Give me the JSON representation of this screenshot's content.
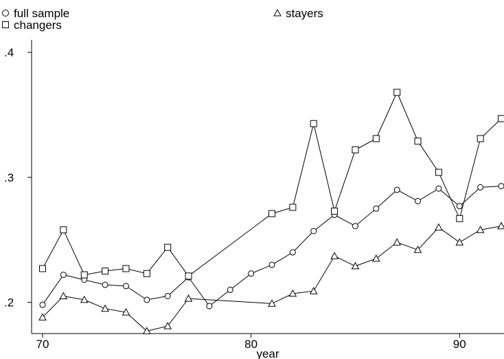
{
  "chart_data": {
    "type": "line",
    "xlabel": "year",
    "ylabel": "",
    "xlim": [
      70,
      92
    ],
    "ylim": [
      0.175,
      0.41
    ],
    "x_ticks": [
      70,
      80,
      90
    ],
    "x_tick_labels": [
      "70",
      "80",
      "90"
    ],
    "y_ticks": [
      0.2,
      0.3,
      0.4
    ],
    "y_tick_labels": [
      ".2",
      ".3",
      ".4"
    ],
    "grid": false,
    "legend_position": "top",
    "series": [
      {
        "name": "full sample",
        "marker": "circle",
        "points": [
          [
            70,
            0.198
          ],
          [
            71,
            0.222
          ],
          [
            72,
            0.218
          ],
          [
            73,
            0.214
          ],
          [
            74,
            0.213
          ],
          [
            75,
            0.202
          ],
          [
            76,
            0.205
          ],
          [
            77,
            0.22
          ],
          [
            78,
            0.197
          ],
          [
            79,
            0.21
          ],
          [
            80,
            0.223
          ],
          [
            81,
            0.23
          ],
          [
            82,
            0.24
          ],
          [
            83,
            0.257
          ],
          [
            84,
            0.27
          ],
          [
            85,
            0.261
          ],
          [
            86,
            0.275
          ],
          [
            87,
            0.29
          ],
          [
            88,
            0.281
          ],
          [
            89,
            0.291
          ],
          [
            90,
            0.277
          ],
          [
            91,
            0.292
          ],
          [
            92,
            0.293
          ]
        ]
      },
      {
        "name": "stayers",
        "marker": "triangle",
        "points": [
          [
            70,
            0.188
          ],
          [
            71,
            0.205
          ],
          [
            72,
            0.202
          ],
          [
            73,
            0.195
          ],
          [
            74,
            0.192
          ],
          [
            75,
            0.177
          ],
          [
            76,
            0.181
          ],
          [
            77,
            0.203
          ],
          [
            81,
            0.199
          ],
          [
            82,
            0.207
          ],
          [
            83,
            0.209
          ],
          [
            84,
            0.237
          ],
          [
            85,
            0.229
          ],
          [
            86,
            0.235
          ],
          [
            87,
            0.248
          ],
          [
            88,
            0.242
          ],
          [
            89,
            0.26
          ],
          [
            90,
            0.248
          ],
          [
            91,
            0.258
          ],
          [
            92,
            0.261
          ]
        ]
      },
      {
        "name": "changers",
        "marker": "square",
        "points": [
          [
            70,
            0.227
          ],
          [
            71,
            0.258
          ],
          [
            72,
            0.222
          ],
          [
            73,
            0.225
          ],
          [
            74,
            0.227
          ],
          [
            75,
            0.223
          ],
          [
            76,
            0.244
          ],
          [
            77,
            0.221
          ],
          [
            81,
            0.271
          ],
          [
            82,
            0.276
          ],
          [
            83,
            0.343
          ],
          [
            84,
            0.273
          ],
          [
            85,
            0.322
          ],
          [
            86,
            0.331
          ],
          [
            87,
            0.368
          ],
          [
            88,
            0.329
          ],
          [
            89,
            0.304
          ],
          [
            90,
            0.267
          ],
          [
            91,
            0.331
          ],
          [
            92,
            0.347
          ]
        ]
      }
    ]
  }
}
